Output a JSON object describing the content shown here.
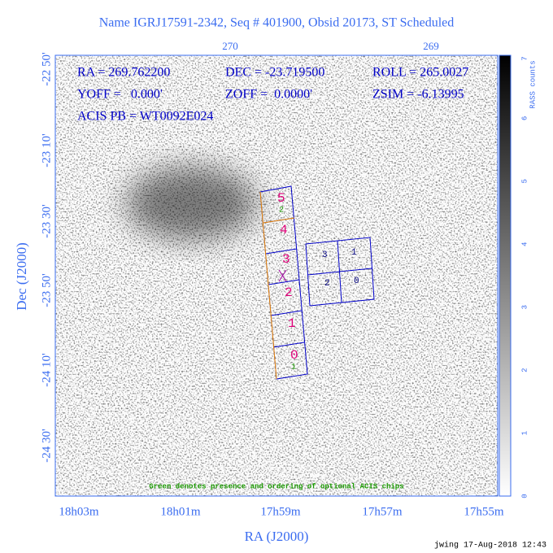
{
  "title": "Name IGRJ17591-2342, Seq # 401900, Obsid 20173, ST Scheduled",
  "top_axis": [
    "270",
    "269"
  ],
  "left_axis": [
    "-22 50'",
    "-23 10'",
    "-23 30'",
    "-23 50'",
    "-24 10'",
    "-24 30'"
  ],
  "bottom_axis": [
    "18h03m",
    "18h01m",
    "17h59m",
    "17h57m",
    "17h55m"
  ],
  "x_title": "RA (J2000)",
  "y_title": "Dec (J2000)",
  "info": [
    "RA = 269.762200",
    "DEC = -23.719500",
    "ROLL = 265.0027",
    "YOFF =   0.000'",
    "ZOFF =  0.0000'",
    "ZSIM = -6.13995",
    "ACIS PB = WT0092E024"
  ],
  "colorbar_label": "RASS counts",
  "colorbar_ticks": [
    "0",
    "1",
    "2",
    "3",
    "4",
    "5",
    "6",
    "7"
  ],
  "s_chips": [
    "5",
    "4",
    "3",
    "2",
    "1",
    "0"
  ],
  "i_chips": [
    "3",
    "1",
    "2",
    "0"
  ],
  "optional_chips": [
    "2",
    "1"
  ],
  "note": "Green denotes presence and ordering of optional ACIS chips",
  "stamp": "jwing 17-Aug-2018 12:43"
}
